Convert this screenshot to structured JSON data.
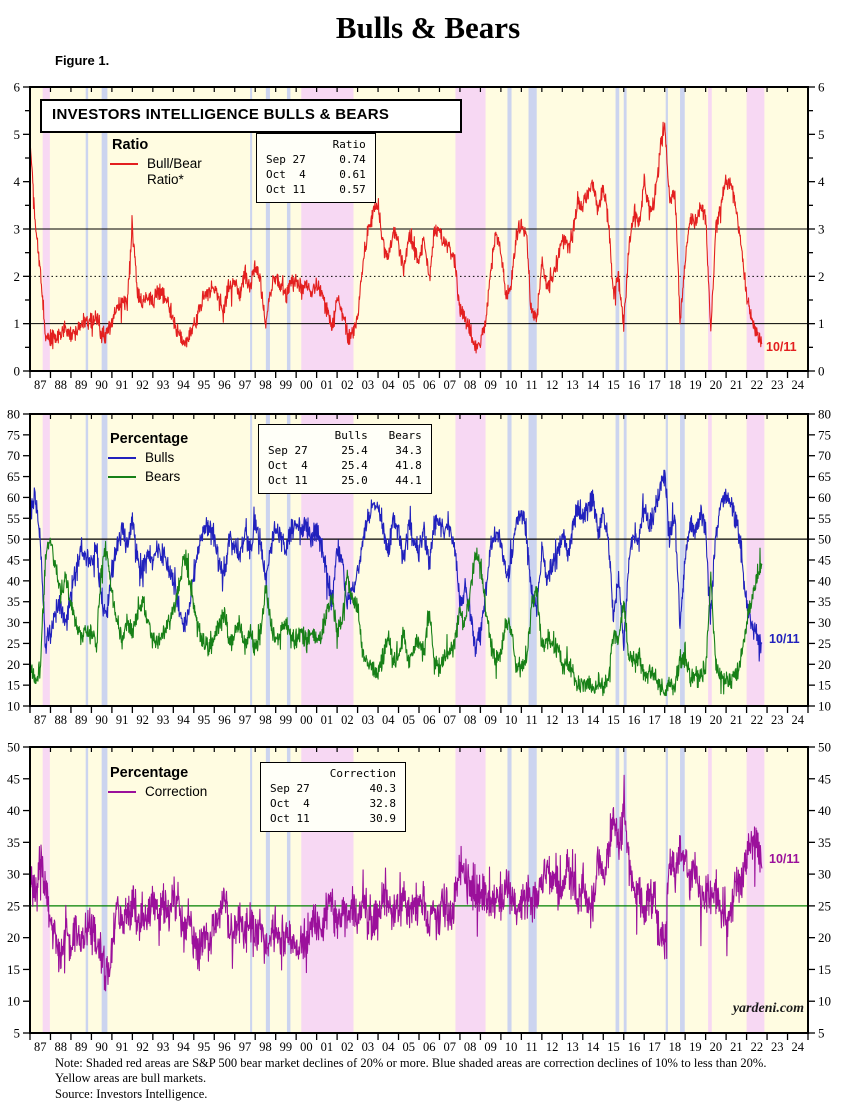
{
  "page": {
    "title": "Bulls & Bears",
    "figure_label": "Figure 1.",
    "branding": "yardeni.com",
    "notes": [
      "Note: Shaded red areas are S&P 500 bear market declines of 20% or more.  Blue shaded areas are correction declines of 10% to less than 20%.",
      "Yellow areas are bull markets.",
      "Source: Investors Intelligence."
    ]
  },
  "colors": {
    "background": "#fffce1",
    "band_bear": "#f7d8f3",
    "band_correction": "#ccd4ef",
    "ratio_line": "#e31f1f",
    "bulls_line": "#2121bd",
    "bears_line": "#178017",
    "correction_line": "#9b109b",
    "ref_black": "#000000",
    "ref_green": "#008000",
    "axis": "#000000"
  },
  "shaded_bands": {
    "bear_year_ranges": [
      [
        1987.62,
        1987.97
      ],
      [
        2000.25,
        2002.8
      ],
      [
        2007.78,
        2009.25
      ],
      [
        2020.12,
        2020.3
      ],
      [
        2022.0,
        2022.87
      ]
    ],
    "correction_year_ranges": [
      [
        1989.72,
        1989.84
      ],
      [
        1990.5,
        1990.78
      ],
      [
        1997.75,
        1997.85
      ],
      [
        1998.52,
        1998.72
      ],
      [
        1999.55,
        1999.72
      ],
      [
        2010.32,
        2010.52
      ],
      [
        2011.35,
        2011.75
      ],
      [
        2015.6,
        2015.78
      ],
      [
        2016.0,
        2016.14
      ],
      [
        2018.05,
        2018.16
      ],
      [
        2018.75,
        2018.98
      ]
    ]
  },
  "x_axis": {
    "start_year": 1987,
    "end_year": 2025,
    "tick_labels": [
      "87",
      "88",
      "89",
      "90",
      "91",
      "92",
      "93",
      "94",
      "95",
      "96",
      "97",
      "98",
      "99",
      "00",
      "01",
      "02",
      "03",
      "04",
      "05",
      "06",
      "07",
      "08",
      "09",
      "10",
      "11",
      "12",
      "13",
      "14",
      "15",
      "16",
      "17",
      "18",
      "19",
      "20",
      "21",
      "22",
      "23",
      "24"
    ]
  },
  "chart_data": [
    {
      "type": "line",
      "title_box": "INVESTORS INTELLIGENCE BULLS & BEARS",
      "legend": {
        "title": "Ratio",
        "entries": [
          {
            "label": "Bull/Bear Ratio*",
            "color_key": "ratio_line"
          }
        ]
      },
      "info_table": {
        "columns": [
          "Ratio"
        ],
        "rows": [
          [
            "Sep 27",
            "0.74"
          ],
          [
            "Oct  4",
            "0.61"
          ],
          [
            "Oct 11",
            "0.57"
          ]
        ]
      },
      "annotation": "10/11",
      "ylim": [
        0,
        6
      ],
      "ytick_step": 1,
      "minor_step": 0.5,
      "ref_lines": [
        {
          "value": 1,
          "style": "solid",
          "color_key": "ref_black",
          "width": 1
        },
        {
          "value": 2,
          "style": "dotted",
          "color_key": "ref_black",
          "width": 1
        },
        {
          "value": 3,
          "style": "solid",
          "color_key": "ref_black",
          "width": 1
        }
      ],
      "series": [
        {
          "name": "Bull/Bear Ratio",
          "color_key": "ratio_line",
          "jitter": 0.22,
          "clamp": [
            0.38,
            5.28
          ],
          "x_start": 1987,
          "x_step": 0.25,
          "values": [
            4.9,
            3.2,
            2.1,
            0.8,
            0.7,
            0.65,
            0.8,
            0.9,
            0.75,
            0.8,
            1.05,
            1.1,
            1.0,
            1.15,
            0.75,
            0.8,
            1.05,
            1.35,
            1.5,
            1.45,
            3.0,
            1.7,
            1.45,
            1.55,
            1.5,
            1.7,
            1.6,
            1.5,
            1.0,
            0.8,
            0.6,
            0.7,
            0.95,
            1.3,
            1.6,
            1.7,
            1.8,
            1.5,
            1.3,
            1.8,
            1.85,
            1.6,
            2.1,
            1.7,
            2.2,
            1.9,
            1.0,
            1.7,
            2.0,
            1.8,
            1.6,
            1.9,
            1.95,
            1.7,
            1.85,
            1.6,
            1.9,
            1.6,
            1.3,
            0.9,
            1.45,
            1.3,
            0.7,
            0.8,
            1.1,
            2.2,
            3.0,
            3.3,
            3.5,
            2.7,
            2.3,
            2.9,
            2.7,
            2.1,
            2.9,
            2.5,
            2.4,
            2.8,
            1.9,
            2.9,
            3.0,
            2.7,
            2.6,
            2.3,
            1.3,
            1.1,
            0.9,
            0.5,
            0.6,
            1.0,
            2.1,
            2.9,
            2.6,
            1.6,
            1.8,
            2.9,
            3.1,
            2.8,
            1.2,
            1.1,
            2.3,
            1.8,
            2.0,
            2.3,
            2.8,
            2.6,
            2.9,
            3.6,
            3.5,
            3.8,
            4.0,
            3.4,
            3.9,
            3.2,
            1.6,
            2.1,
            0.9,
            2.6,
            3.4,
            3.1,
            4.0,
            3.4,
            3.6,
            4.6,
            5.2,
            3.5,
            3.8,
            1.1,
            2.3,
            3.2,
            3.1,
            3.4,
            3.4,
            0.8,
            3.1,
            3.5,
            4.0,
            3.9,
            3.4,
            2.6,
            1.6,
            1.1,
            0.8,
            0.57
          ]
        }
      ]
    },
    {
      "type": "line",
      "legend": {
        "title": "Percentage",
        "entries": [
          {
            "label": "Bulls",
            "color_key": "bulls_line"
          },
          {
            "label": "Bears",
            "color_key": "bears_line"
          }
        ]
      },
      "info_table": {
        "columns": [
          "Bulls",
          "Bears"
        ],
        "rows": [
          [
            "Sep 27",
            "25.4",
            "34.3"
          ],
          [
            "Oct  4",
            "25.4",
            "41.8"
          ],
          [
            "Oct 11",
            "25.0",
            "44.1"
          ]
        ]
      },
      "annotation": "10/11",
      "ylim": [
        10,
        80
      ],
      "ytick_step": 5,
      "ref_lines": [
        {
          "value": 50,
          "style": "solid",
          "color_key": "ref_black",
          "width": 1.2
        }
      ],
      "series": [
        {
          "name": "Bulls",
          "color_key": "bulls_line",
          "jitter": 3.2,
          "clamp": [
            13,
            66.5
          ],
          "x_start": 1987,
          "x_step": 0.25,
          "values": [
            56,
            60,
            50,
            24,
            28,
            32,
            35,
            30,
            38,
            42,
            48,
            45,
            45,
            48,
            34,
            32,
            42,
            48,
            52,
            48,
            55,
            45,
            42,
            46,
            45,
            48,
            46,
            44,
            40,
            34,
            29,
            32,
            42,
            48,
            52,
            54,
            50,
            44,
            41,
            50,
            48,
            46,
            52,
            47,
            54,
            50,
            40,
            48,
            53,
            50,
            48,
            52,
            54,
            52,
            53,
            50,
            52,
            48,
            42,
            35,
            48,
            45,
            34,
            38,
            42,
            50,
            55,
            58,
            58,
            52,
            47,
            55,
            52,
            45,
            55,
            50,
            47,
            52,
            43,
            54,
            55,
            52,
            53,
            47,
            34,
            38,
            33,
            24,
            27,
            38,
            48,
            52,
            50,
            41,
            44,
            55,
            56,
            52,
            37,
            34,
            48,
            41,
            44,
            46,
            52,
            47,
            52,
            58,
            55,
            58,
            60,
            51,
            57,
            50,
            31,
            40,
            25,
            45,
            52,
            50,
            58,
            53,
            56,
            62,
            66,
            51,
            55,
            30,
            45,
            54,
            52,
            56,
            53,
            31,
            52,
            58,
            61,
            58,
            54,
            47,
            35,
            30,
            27,
            25.0
          ]
        },
        {
          "name": "Bears",
          "color_key": "bears_line",
          "jitter": 2.8,
          "clamp": [
            12.5,
            56
          ],
          "x_start": 1987,
          "x_step": 0.25,
          "values": [
            20,
            16,
            19,
            45,
            50,
            43,
            37,
            41,
            34,
            30,
            26,
            28,
            27,
            24,
            44,
            48,
            37,
            30,
            26,
            30,
            27,
            32,
            35,
            30,
            26,
            25,
            28,
            30,
            32,
            38,
            46,
            42,
            34,
            28,
            25,
            24,
            26,
            30,
            32,
            25,
            27,
            30,
            24,
            28,
            24,
            26,
            39,
            30,
            26,
            28,
            30,
            26,
            26,
            28,
            25,
            28,
            25,
            28,
            32,
            37,
            28,
            30,
            41,
            36,
            34,
            23,
            20,
            19,
            18,
            22,
            26,
            20,
            22,
            28,
            20,
            24,
            26,
            22,
            33,
            21,
            19,
            22,
            24,
            26,
            32,
            30,
            37,
            47,
            44,
            34,
            25,
            21,
            22,
            31,
            28,
            20,
            19,
            20,
            35,
            38,
            24,
            26,
            25,
            24,
            20,
            20,
            18,
            15,
            16,
            15,
            14,
            16,
            14,
            16,
            28,
            26,
            35,
            22,
            20,
            22,
            17,
            18,
            17,
            15,
            13,
            16,
            15,
            21,
            21,
            17,
            17,
            17,
            18,
            41,
            20,
            17,
            16,
            16,
            17,
            22,
            30,
            35,
            40,
            44.1
          ]
        }
      ]
    },
    {
      "type": "line",
      "legend": {
        "title": "Percentage",
        "entries": [
          {
            "label": "Correction",
            "color_key": "correction_line"
          }
        ]
      },
      "info_table": {
        "columns": [
          "Correction"
        ],
        "rows": [
          [
            "Sep 27",
            "40.3"
          ],
          [
            "Oct  4",
            "32.8"
          ],
          [
            "Oct 11",
            "30.9"
          ]
        ]
      },
      "annotation": "10/11",
      "ylim": [
        5,
        50
      ],
      "ytick_step": 5,
      "ref_lines": [
        {
          "value": 25,
          "style": "solid",
          "color_key": "ref_green",
          "width": 1.2
        }
      ],
      "series": [
        {
          "name": "Correction",
          "color_key": "correction_line",
          "jitter": 4.0,
          "clamp": [
            8.5,
            46.5
          ],
          "x_start": 1987,
          "x_step": 0.25,
          "values": [
            30,
            26,
            33,
            28,
            24,
            19,
            16,
            22,
            17,
            22,
            19,
            21,
            22,
            20,
            17,
            14,
            18,
            25,
            21,
            24,
            26,
            21,
            24,
            22,
            26,
            23,
            25,
            24,
            26,
            25,
            21,
            24,
            19,
            17,
            20,
            19,
            22,
            24,
            27,
            21,
            22,
            23,
            21,
            22,
            20,
            22,
            17,
            20,
            20,
            21,
            20,
            20,
            17,
            19,
            20,
            23,
            22,
            21,
            24,
            26,
            21,
            24,
            23,
            25,
            22,
            26,
            24,
            22,
            23,
            26,
            25,
            24,
            25,
            26,
            24,
            25,
            26,
            25,
            22,
            24,
            24,
            26,
            22,
            26,
            31,
            30,
            28,
            26,
            27,
            26,
            24,
            26,
            26,
            28,
            27,
            25,
            25,
            27,
            26,
            27,
            28,
            31,
            30,
            29,
            27,
            31,
            28,
            26,
            28,
            26,
            24,
            32,
            29,
            33,
            40,
            33,
            41,
            32,
            27,
            27,
            24,
            28,
            26,
            21,
            19,
            32,
            29,
            34,
            33,
            28,
            31,
            26,
            27,
            26,
            28,
            24,
            22,
            25,
            28,
            29,
            33,
            35,
            36,
            30.9
          ]
        }
      ]
    }
  ]
}
